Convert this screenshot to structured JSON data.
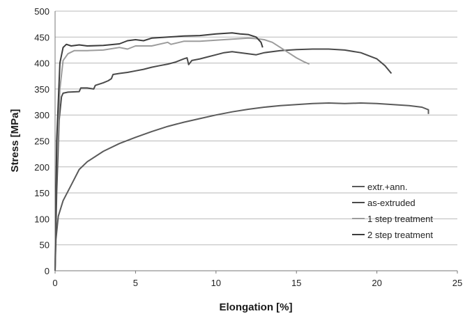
{
  "chart_data": {
    "type": "line",
    "xlabel": "Elongation [%]",
    "ylabel": "Stress [MPa]",
    "xlim": [
      0,
      25
    ],
    "ylim": [
      0,
      500
    ],
    "xticks": [
      0,
      5,
      10,
      15,
      20,
      25
    ],
    "yticks": [
      0,
      50,
      100,
      150,
      200,
      250,
      300,
      350,
      400,
      450,
      500
    ],
    "grid": "horizontal",
    "legend_position": "bottom-right",
    "series": [
      {
        "name": "extr.+ann.",
        "color": "#5a5a5a",
        "points": [
          [
            0,
            0
          ],
          [
            0.05,
            60
          ],
          [
            0.2,
            105
          ],
          [
            0.5,
            135
          ],
          [
            1.0,
            165
          ],
          [
            1.5,
            195
          ],
          [
            2.0,
            210
          ],
          [
            3.0,
            230
          ],
          [
            4.0,
            245
          ],
          [
            5.0,
            257
          ],
          [
            6.0,
            268
          ],
          [
            7.0,
            278
          ],
          [
            8.0,
            286
          ],
          [
            9.0,
            293
          ],
          [
            10.0,
            300
          ],
          [
            11.0,
            306
          ],
          [
            12.0,
            311
          ],
          [
            13.0,
            315
          ],
          [
            14.0,
            318
          ],
          [
            15.0,
            320
          ],
          [
            16.0,
            322
          ],
          [
            17.0,
            323
          ],
          [
            18.0,
            322
          ],
          [
            19.0,
            323
          ],
          [
            20.0,
            322
          ],
          [
            21.0,
            320
          ],
          [
            22.0,
            318
          ],
          [
            22.8,
            315
          ],
          [
            23.2,
            310
          ],
          [
            23.2,
            302
          ]
        ]
      },
      {
        "name": "as-extruded",
        "color": "#4a4a4a",
        "points": [
          [
            0,
            0
          ],
          [
            0.1,
            150
          ],
          [
            0.25,
            290
          ],
          [
            0.4,
            335
          ],
          [
            0.5,
            342
          ],
          [
            0.8,
            344
          ],
          [
            1.5,
            345
          ],
          [
            1.6,
            352
          ],
          [
            2.0,
            352
          ],
          [
            2.4,
            350
          ],
          [
            2.5,
            357
          ],
          [
            3.0,
            362
          ],
          [
            3.3,
            366
          ],
          [
            3.5,
            370
          ],
          [
            3.6,
            378
          ],
          [
            4.0,
            380
          ],
          [
            4.5,
            382
          ],
          [
            5.0,
            385
          ],
          [
            5.5,
            388
          ],
          [
            6.0,
            392
          ],
          [
            6.5,
            395
          ],
          [
            7.0,
            398
          ],
          [
            7.5,
            402
          ],
          [
            8.0,
            408
          ],
          [
            8.2,
            410
          ],
          [
            8.3,
            397
          ],
          [
            8.5,
            405
          ],
          [
            9.0,
            408
          ],
          [
            9.5,
            412
          ],
          [
            10.0,
            416
          ],
          [
            10.5,
            420
          ],
          [
            11.0,
            422
          ],
          [
            12.0,
            418
          ],
          [
            12.5,
            416
          ],
          [
            13.0,
            420
          ],
          [
            14.0,
            424
          ],
          [
            15.0,
            426
          ],
          [
            16.0,
            427
          ],
          [
            17.0,
            427
          ],
          [
            18.0,
            425
          ],
          [
            19.0,
            420
          ],
          [
            20.0,
            408
          ],
          [
            20.5,
            395
          ],
          [
            20.9,
            380
          ]
        ]
      },
      {
        "name": "1 step treatment",
        "color": "#9c9c9c",
        "points": [
          [
            0,
            0
          ],
          [
            0.1,
            200
          ],
          [
            0.3,
            350
          ],
          [
            0.5,
            405
          ],
          [
            0.8,
            418
          ],
          [
            1.2,
            424
          ],
          [
            2.0,
            424
          ],
          [
            3.0,
            425
          ],
          [
            4.0,
            430
          ],
          [
            4.5,
            427
          ],
          [
            5.0,
            433
          ],
          [
            6.0,
            433
          ],
          [
            7.0,
            440
          ],
          [
            7.2,
            436
          ],
          [
            8.0,
            442
          ],
          [
            9.0,
            442
          ],
          [
            10.0,
            444
          ],
          [
            11.0,
            446
          ],
          [
            12.0,
            448
          ],
          [
            12.5,
            447
          ],
          [
            13.0,
            445
          ],
          [
            13.5,
            440
          ],
          [
            14.0,
            430
          ],
          [
            14.5,
            420
          ],
          [
            15.0,
            410
          ],
          [
            15.5,
            402
          ],
          [
            15.8,
            398
          ]
        ]
      },
      {
        "name": "2 step treatment",
        "color": "#3c3c3c",
        "points": [
          [
            0,
            0
          ],
          [
            0.1,
            250
          ],
          [
            0.3,
            400
          ],
          [
            0.5,
            430
          ],
          [
            0.7,
            436
          ],
          [
            1.0,
            433
          ],
          [
            1.5,
            435
          ],
          [
            2.0,
            433
          ],
          [
            3.0,
            434
          ],
          [
            4.0,
            437
          ],
          [
            4.5,
            443
          ],
          [
            5.0,
            445
          ],
          [
            5.5,
            443
          ],
          [
            6.0,
            448
          ],
          [
            7.0,
            450
          ],
          [
            8.0,
            452
          ],
          [
            9.0,
            453
          ],
          [
            10.0,
            456
          ],
          [
            11.0,
            458
          ],
          [
            11.5,
            456
          ],
          [
            12.0,
            455
          ],
          [
            12.5,
            450
          ],
          [
            12.8,
            440
          ],
          [
            12.9,
            430
          ]
        ]
      }
    ]
  }
}
